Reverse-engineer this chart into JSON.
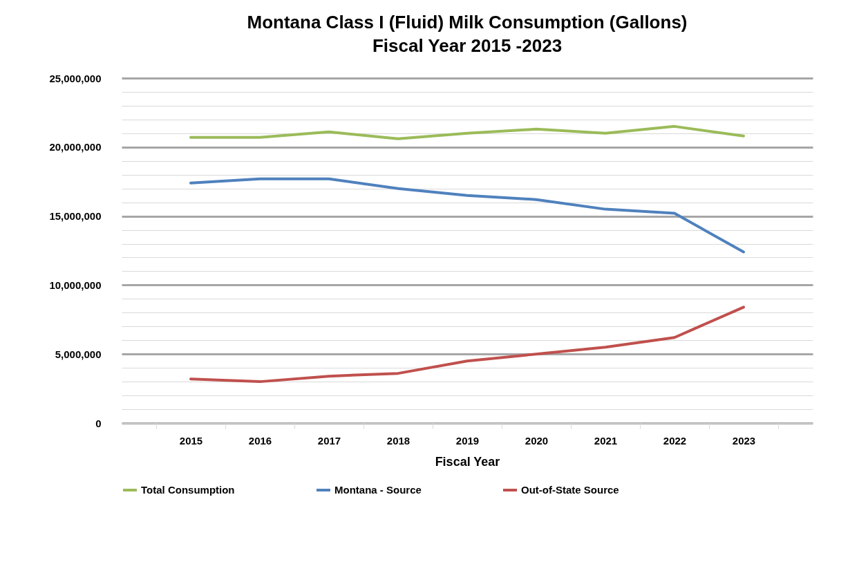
{
  "chart_data": {
    "type": "line",
    "title": "Montana Class I (Fluid) Milk Consumption (Gallons)",
    "subtitle": "Fiscal Year 2015 -2023",
    "xlabel": "Fiscal Year",
    "categories": [
      "2015",
      "2016",
      "2017",
      "2018",
      "2019",
      "2020",
      "2021",
      "2022",
      "2023"
    ],
    "series": [
      {
        "name": "Total Consumption",
        "color": "#9bbb59",
        "values": [
          20700000,
          20700000,
          21100000,
          20600000,
          21000000,
          21300000,
          21000000,
          21500000,
          20800000
        ]
      },
      {
        "name": "Montana - Source",
        "color": "#4f81bd",
        "values": [
          17400000,
          17700000,
          17700000,
          17000000,
          16500000,
          16200000,
          15500000,
          15200000,
          12400000
        ]
      },
      {
        "name": "Out-of-State Source",
        "color": "#c0504d",
        "values": [
          3200000,
          3000000,
          3400000,
          3600000,
          4500000,
          5000000,
          5500000,
          6200000,
          8400000
        ]
      }
    ],
    "ylim": [
      0,
      25000000
    ],
    "yticks": [
      {
        "value": 0,
        "label": "0"
      },
      {
        "value": 1000000,
        "label": null
      },
      {
        "value": 2000000,
        "label": null
      },
      {
        "value": 3000000,
        "label": null
      },
      {
        "value": 4000000,
        "label": null
      },
      {
        "value": 5000000,
        "label": "5,000,000"
      },
      {
        "value": 6000000,
        "label": null
      },
      {
        "value": 7000000,
        "label": null
      },
      {
        "value": 8000000,
        "label": null
      },
      {
        "value": 9000000,
        "label": null
      },
      {
        "value": 10000000,
        "label": "10,000,000"
      },
      {
        "value": 11000000,
        "label": null
      },
      {
        "value": 12000000,
        "label": null
      },
      {
        "value": 13000000,
        "label": null
      },
      {
        "value": 14000000,
        "label": null
      },
      {
        "value": 15000000,
        "label": "15,000,000"
      },
      {
        "value": 16000000,
        "label": null
      },
      {
        "value": 17000000,
        "label": null
      },
      {
        "value": 18000000,
        "label": null
      },
      {
        "value": 19000000,
        "label": null
      },
      {
        "value": 20000000,
        "label": "20,000,000"
      },
      {
        "value": 21000000,
        "label": null
      },
      {
        "value": 22000000,
        "label": null
      },
      {
        "value": 23000000,
        "label": null
      },
      {
        "value": 24000000,
        "label": null
      },
      {
        "value": 25000000,
        "label": "25,000,000"
      }
    ],
    "grid": "y",
    "legend": "bottom",
    "marker": "none",
    "line_style": "solid"
  }
}
